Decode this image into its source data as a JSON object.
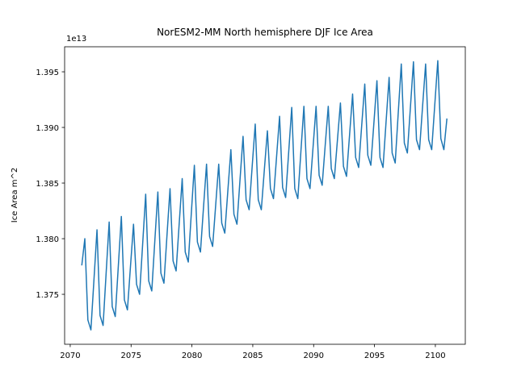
{
  "chart_data": {
    "type": "line",
    "title": "NorESM2-MM North hemisphere DJF Ice Area",
    "ylabel": "Ice Area m^2",
    "y_offset_label": "1e13",
    "x": [
      2070.95,
      2071.2,
      2071.45,
      2071.7,
      2071.95,
      2072.2,
      2072.45,
      2072.7,
      2072.95,
      2073.2,
      2073.45,
      2073.7,
      2073.95,
      2074.2,
      2074.45,
      2074.7,
      2074.95,
      2075.2,
      2075.45,
      2075.7,
      2075.95,
      2076.2,
      2076.45,
      2076.7,
      2076.95,
      2077.2,
      2077.45,
      2077.7,
      2077.95,
      2078.2,
      2078.45,
      2078.7,
      2078.95,
      2079.2,
      2079.45,
      2079.7,
      2079.95,
      2080.2,
      2080.45,
      2080.7,
      2080.95,
      2081.2,
      2081.45,
      2081.7,
      2081.95,
      2082.2,
      2082.45,
      2082.7,
      2082.95,
      2083.2,
      2083.45,
      2083.7,
      2083.95,
      2084.2,
      2084.45,
      2084.7,
      2084.95,
      2085.2,
      2085.45,
      2085.7,
      2085.95,
      2086.2,
      2086.45,
      2086.7,
      2086.95,
      2087.2,
      2087.45,
      2087.7,
      2087.95,
      2088.2,
      2088.45,
      2088.7,
      2088.95,
      2089.2,
      2089.45,
      2089.7,
      2089.95,
      2090.2,
      2090.45,
      2090.7,
      2090.95,
      2091.2,
      2091.45,
      2091.7,
      2091.95,
      2092.2,
      2092.45,
      2092.7,
      2092.95,
      2093.2,
      2093.45,
      2093.7,
      2093.95,
      2094.2,
      2094.45,
      2094.7,
      2094.95,
      2095.2,
      2095.45,
      2095.7,
      2095.95,
      2096.2,
      2096.45,
      2096.7,
      2096.95,
      2097.2,
      2097.45,
      2097.7,
      2097.95,
      2098.2,
      2098.45,
      2098.7,
      2098.95,
      2099.2,
      2099.45,
      2099.7,
      2099.95,
      2100.2,
      2100.45,
      2100.7,
      2100.95
    ],
    "values": [
      1.3776,
      1.38,
      1.3727,
      1.3718,
      1.3763,
      1.3808,
      1.3731,
      1.3722,
      1.3769,
      1.3815,
      1.3739,
      1.373,
      1.3775,
      1.382,
      1.3745,
      1.3736,
      1.3775,
      1.3813,
      1.3759,
      1.375,
      1.3795,
      1.384,
      1.3762,
      1.3753,
      1.3798,
      1.3842,
      1.3769,
      1.376,
      1.3803,
      1.3845,
      1.378,
      1.3771,
      1.3813,
      1.3854,
      1.3788,
      1.3779,
      1.3823,
      1.3866,
      1.3797,
      1.3788,
      1.3828,
      1.3867,
      1.3802,
      1.3793,
      1.383,
      1.3867,
      1.3814,
      1.3805,
      1.3843,
      1.388,
      1.3822,
      1.3813,
      1.3853,
      1.3892,
      1.3835,
      1.3826,
      1.3865,
      1.3903,
      1.3835,
      1.3826,
      1.3862,
      1.3897,
      1.3845,
      1.3836,
      1.3873,
      1.391,
      1.3846,
      1.3837,
      1.3878,
      1.3918,
      1.3845,
      1.3836,
      1.3878,
      1.3919,
      1.3854,
      1.3845,
      1.3882,
      1.3919,
      1.3857,
      1.3848,
      1.3884,
      1.3919,
      1.3863,
      1.3854,
      1.3888,
      1.3922,
      1.3865,
      1.3856,
      1.3893,
      1.393,
      1.3873,
      1.3864,
      1.3902,
      1.3939,
      1.3875,
      1.3866,
      1.3904,
      1.3942,
      1.3873,
      1.3864,
      1.3905,
      1.3945,
      1.3877,
      1.3868,
      1.3913,
      1.3957,
      1.3886,
      1.3877,
      1.3918,
      1.3959,
      1.3889,
      1.388,
      1.3919,
      1.3957,
      1.3889,
      1.388,
      1.392,
      1.396,
      1.389,
      1.388,
      1.3908
    ],
    "color": "#1f77b4",
    "xlim": [
      2069.54,
      2102.46
    ],
    "xticks": [
      2070,
      2075,
      2080,
      2085,
      2090,
      2095,
      2100
    ],
    "ylim": [
      1.37051,
      1.39725
    ],
    "yticks": [
      1.375,
      {
        "value": 1.38,
        "label": "1.380"
      },
      1.385,
      {
        "value": 1.39,
        "label": "1.390"
      },
      1.395
    ]
  }
}
